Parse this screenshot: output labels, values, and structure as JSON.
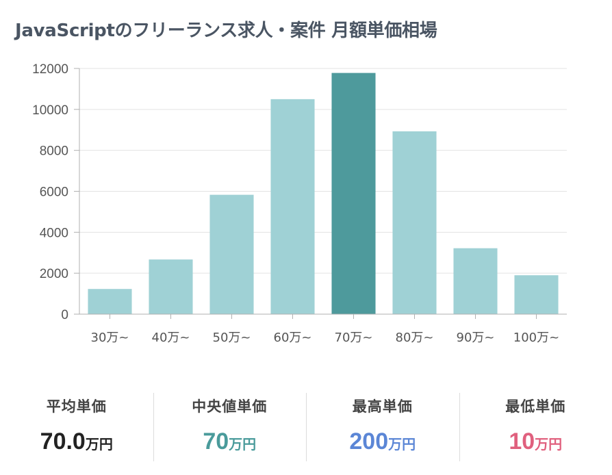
{
  "title": "JavaScriptのフリーランス求人・案件 月額単価相場",
  "chart_data": {
    "type": "bar",
    "title": "JavaScriptのフリーランス求人・案件 月額単価相場",
    "categories": [
      "30万~",
      "40万~",
      "50万~",
      "60万~",
      "70万~",
      "80万~",
      "90万~",
      "100万~"
    ],
    "values": [
      1230,
      2670,
      5830,
      10500,
      11780,
      8930,
      3220,
      1900
    ],
    "highlight_index": 4,
    "colors": {
      "bar": "#9fd1d5",
      "highlight": "#4e9a9c",
      "grid": "#e3e3e3",
      "axis": "#b0b0b0"
    },
    "ylim": [
      0,
      12000
    ],
    "yticks": [
      0,
      2000,
      4000,
      6000,
      8000,
      10000,
      12000
    ],
    "xlabel": "",
    "ylabel": "",
    "grid": true,
    "legend": "none"
  },
  "stats": [
    {
      "label": "平均単価",
      "value": "70.0",
      "unit": "万円",
      "color": "#222222"
    },
    {
      "label": "中央値単価",
      "value": "70",
      "unit": "万円",
      "color": "#4a9b9b"
    },
    {
      "label": "最高単価",
      "value": "200",
      "unit": "万円",
      "color": "#5b86d6"
    },
    {
      "label": "最低単価",
      "value": "10",
      "unit": "万円",
      "color": "#e0607e"
    }
  ]
}
